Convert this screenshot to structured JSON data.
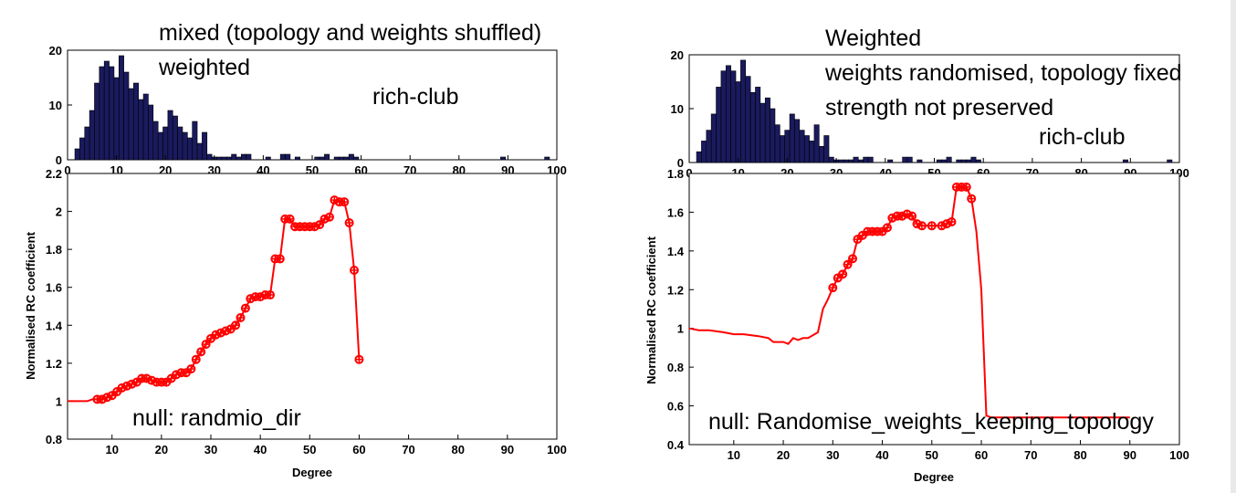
{
  "chart_data": [
    {
      "type": "bar",
      "panel": "left-histogram",
      "xlim": [
        0,
        100
      ],
      "ylim": [
        0,
        20
      ],
      "xticks": [
        0,
        10,
        20,
        30,
        40,
        50,
        60,
        70,
        80,
        90,
        100
      ],
      "yticks": [
        0,
        10,
        20
      ],
      "bar_color": "#1a1a5e",
      "x": [
        2,
        3,
        4,
        5,
        6,
        7,
        8,
        9,
        10,
        11,
        12,
        13,
        14,
        15,
        16,
        17,
        18,
        19,
        20,
        21,
        22,
        23,
        24,
        25,
        26,
        27,
        28,
        29,
        30,
        31,
        32,
        33,
        34,
        35,
        36,
        37,
        41,
        44,
        45,
        47,
        51,
        52,
        53,
        55,
        56,
        57,
        58,
        59,
        89,
        98
      ],
      "values": [
        2,
        4,
        6,
        9,
        14,
        17,
        18,
        17,
        15,
        19,
        16,
        13,
        14,
        11,
        12,
        10,
        7,
        5,
        6,
        9,
        8,
        6,
        5,
        4,
        7,
        3,
        5,
        1,
        0.5,
        0.5,
        0.5,
        0.5,
        1,
        0.5,
        1,
        1,
        0.5,
        1,
        1,
        0.5,
        0.5,
        0.5,
        1,
        0.5,
        0.5,
        0.5,
        1,
        0.5,
        0.5,
        0.5
      ],
      "annotations": [
        "mixed (topology and weights shuffled)",
        "weighted",
        "rich-club"
      ]
    },
    {
      "type": "line",
      "panel": "left-rc",
      "xlabel": "Degree",
      "ylabel": "Normalised RC coefficient",
      "xlim": [
        1,
        100
      ],
      "ylim": [
        0.8,
        2.2
      ],
      "xticks": [
        10,
        20,
        30,
        40,
        50,
        60,
        70,
        80,
        90,
        100
      ],
      "yticks": [
        0.8,
        1,
        1.2,
        1.4,
        1.6,
        1.8,
        2,
        2.2
      ],
      "line_color": "#ff0000",
      "x": [
        1,
        2,
        3,
        4,
        5,
        6,
        7,
        8,
        9,
        10,
        11,
        12,
        13,
        14,
        15,
        16,
        17,
        18,
        19,
        20,
        21,
        22,
        23,
        24,
        25,
        26,
        27,
        28,
        29,
        30,
        31,
        32,
        33,
        34,
        35,
        36,
        37,
        38,
        39,
        40,
        41,
        42,
        43,
        44,
        45,
        46,
        47,
        48,
        49,
        50,
        51,
        52,
        53,
        54,
        55,
        56,
        57,
        58,
        59,
        60
      ],
      "y": [
        1.0,
        1.0,
        1.0,
        1.0,
        1.0,
        1.01,
        1.01,
        1.01,
        1.02,
        1.03,
        1.05,
        1.07,
        1.08,
        1.09,
        1.1,
        1.12,
        1.12,
        1.11,
        1.1,
        1.1,
        1.1,
        1.12,
        1.14,
        1.15,
        1.15,
        1.17,
        1.22,
        1.26,
        1.3,
        1.33,
        1.35,
        1.36,
        1.37,
        1.38,
        1.4,
        1.44,
        1.49,
        1.54,
        1.55,
        1.55,
        1.56,
        1.56,
        1.75,
        1.75,
        1.96,
        1.96,
        1.92,
        1.92,
        1.92,
        1.92,
        1.92,
        1.93,
        1.96,
        1.97,
        2.06,
        2.05,
        2.05,
        1.94,
        1.69,
        1.22
      ],
      "markers_from_x": 7,
      "annotations": [
        "null: randmio_dir"
      ]
    },
    {
      "type": "bar",
      "panel": "right-histogram",
      "xlim": [
        0,
        100
      ],
      "ylim": [
        0,
        20
      ],
      "xticks": [
        0,
        10,
        20,
        30,
        40,
        50,
        60,
        70,
        80,
        90,
        100
      ],
      "yticks": [
        0,
        10,
        20
      ],
      "bar_color": "#1a1a5e",
      "x": [
        2,
        3,
        4,
        5,
        6,
        7,
        8,
        9,
        10,
        11,
        12,
        13,
        14,
        15,
        16,
        17,
        18,
        19,
        20,
        21,
        22,
        23,
        24,
        25,
        26,
        27,
        28,
        29,
        30,
        31,
        32,
        33,
        34,
        35,
        36,
        37,
        41,
        44,
        45,
        47,
        51,
        52,
        53,
        55,
        56,
        57,
        58,
        59,
        89,
        98
      ],
      "values": [
        2,
        4,
        6,
        9,
        14,
        17,
        18,
        17,
        15,
        19,
        16,
        13,
        14,
        11,
        12,
        10,
        7,
        5,
        6,
        9,
        8,
        6,
        5,
        4,
        7,
        3,
        5,
        1,
        0.5,
        0.5,
        0.5,
        0.5,
        1,
        0.5,
        1,
        1,
        0.5,
        1,
        1,
        0.5,
        0.5,
        0.5,
        1,
        0.5,
        0.5,
        0.5,
        1,
        0.5,
        0.5,
        0.5
      ],
      "annotations": [
        "Weighted",
        "weights randomised, topology fixed",
        "strength not preserved",
        "rich-club"
      ]
    },
    {
      "type": "line",
      "panel": "right-rc",
      "xlabel": "Degree",
      "ylabel": "Normalised RC coefficient",
      "xlim": [
        1,
        100
      ],
      "ylim": [
        0.4,
        1.8
      ],
      "xticks": [
        10,
        20,
        30,
        40,
        50,
        60,
        70,
        80,
        90,
        100
      ],
      "yticks": [
        0.4,
        0.6,
        0.8,
        1,
        1.2,
        1.4,
        1.6,
        1.8
      ],
      "line_color": "#ff0000",
      "x": [
        1,
        3,
        5,
        8,
        10,
        12,
        15,
        17,
        18,
        20,
        21,
        22,
        23,
        24,
        25,
        27,
        28,
        29,
        30,
        31,
        32,
        33,
        34,
        35,
        36,
        37,
        38,
        39,
        40,
        41,
        42,
        43,
        44,
        45,
        46,
        47,
        48,
        50,
        52,
        53,
        54,
        55,
        56,
        57,
        58,
        59,
        60,
        61,
        62,
        70,
        80,
        90
      ],
      "y": [
        1.0,
        0.99,
        0.99,
        0.98,
        0.97,
        0.97,
        0.96,
        0.95,
        0.93,
        0.93,
        0.92,
        0.95,
        0.94,
        0.95,
        0.95,
        0.98,
        1.1,
        1.15,
        1.21,
        1.26,
        1.28,
        1.33,
        1.36,
        1.46,
        1.48,
        1.5,
        1.5,
        1.5,
        1.5,
        1.52,
        1.57,
        1.58,
        1.58,
        1.59,
        1.58,
        1.54,
        1.53,
        1.53,
        1.53,
        1.54,
        1.55,
        1.73,
        1.73,
        1.73,
        1.67,
        1.5,
        1.2,
        0.55,
        0.54,
        0.54,
        0.54,
        0.54
      ],
      "marker_x_range": [
        30,
        58
      ],
      "annotations": [
        "null: Randomise_weights_keeping_topology"
      ]
    }
  ]
}
